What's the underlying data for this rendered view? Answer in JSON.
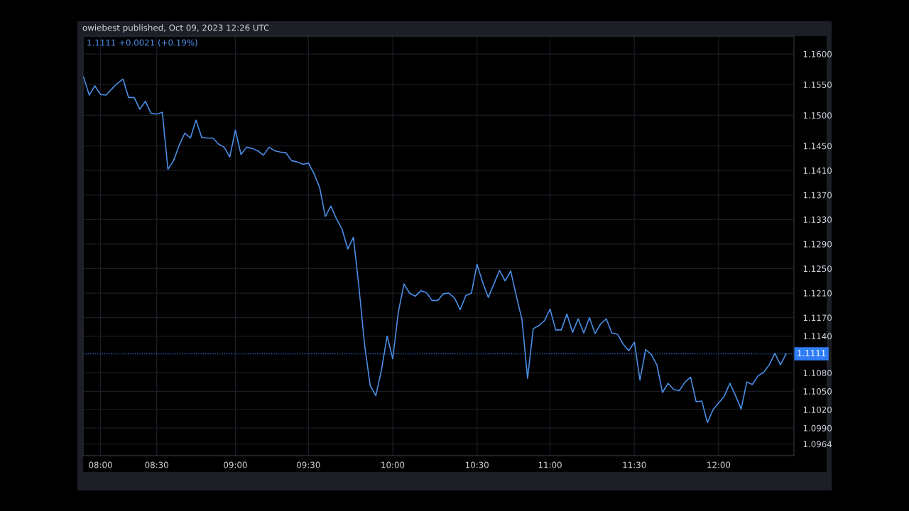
{
  "chart_data": {
    "type": "line",
    "annotations": [
      "owiebest published, Oct 09, 2023 12:26 UTC",
      "1.1111 +0.0021 (+0.19%)"
    ],
    "categories": [
      null,
      null,
      null,
      "08:00",
      null,
      null,
      null,
      null,
      null,
      null,
      null,
      null,
      null,
      "08:30",
      null,
      null,
      null,
      null,
      null,
      null,
      null,
      null,
      null,
      null,
      null,
      null,
      null,
      "09:00",
      null,
      null,
      null,
      null,
      null,
      null,
      null,
      null,
      null,
      null,
      null,
      null,
      "09:30",
      null,
      null,
      null,
      null,
      null,
      null,
      null,
      null,
      null,
      null,
      null,
      null,
      null,
      null,
      "10:00",
      null,
      null,
      null,
      null,
      null,
      null,
      null,
      null,
      null,
      null,
      null,
      null,
      null,
      null,
      "10:30",
      null,
      null,
      null,
      null,
      null,
      null,
      null,
      null,
      null,
      null,
      null,
      null,
      "11:00",
      null,
      null,
      null,
      null,
      null,
      null,
      null,
      null,
      null,
      null,
      null,
      null,
      null,
      null,
      "11:30",
      null,
      null,
      null,
      null,
      null,
      null,
      null,
      null,
      null,
      null,
      null,
      null,
      null,
      null,
      "12:00",
      null,
      null,
      null,
      null,
      null,
      null,
      null,
      null,
      null,
      null,
      null,
      null
    ],
    "series": [
      {
        "color": "#4a8fe7",
        "values": [
          1.1562,
          1.1533,
          1.1548,
          1.1534,
          1.1533,
          1.1543,
          1.1552,
          1.1559,
          1.1529,
          1.1529,
          1.151,
          1.1523,
          1.1503,
          1.1502,
          1.1505,
          1.1412,
          1.1426,
          1.1451,
          1.1471,
          1.1463,
          1.1492,
          1.1464,
          1.1463,
          1.1463,
          1.1453,
          1.1448,
          1.1432,
          1.1476,
          1.1436,
          1.1448,
          1.1446,
          1.1442,
          1.1435,
          1.1448,
          1.1442,
          1.144,
          1.1439,
          1.1426,
          1.1424,
          1.142,
          1.1422,
          1.1405,
          1.1382,
          1.1335,
          1.1352,
          1.1331,
          1.1314,
          1.1282,
          1.1301,
          1.1219,
          1.1125,
          1.1059,
          1.1043,
          1.1085,
          1.114,
          1.1103,
          1.1179,
          1.1225,
          1.121,
          1.1205,
          1.1214,
          1.1211,
          1.1198,
          1.1198,
          1.1209,
          1.121,
          1.1202,
          1.1183,
          1.1206,
          1.121,
          1.1257,
          1.1228,
          1.1203,
          1.1225,
          1.1247,
          1.123,
          1.1246,
          1.1205,
          1.1167,
          1.1071,
          1.1152,
          1.1157,
          1.1165,
          1.1184,
          1.115,
          1.115,
          1.1176,
          1.1146,
          1.1168,
          1.1145,
          1.117,
          1.1144,
          1.116,
          1.1168,
          1.1145,
          1.1143,
          1.1127,
          1.1116,
          1.113,
          1.1068,
          1.1118,
          1.111,
          1.1093,
          1.1048,
          1.1063,
          1.1053,
          1.1051,
          1.1065,
          1.1073,
          1.1033,
          1.1034,
          1.0999,
          1.102,
          1.1031,
          1.1042,
          1.1063,
          1.1043,
          1.1021,
          1.1065,
          1.1061,
          1.1075,
          1.1081,
          1.1093,
          1.1112,
          1.1093,
          1.1111
        ]
      }
    ],
    "ylim": [
      1.0945,
      1.1629
    ],
    "yticks": [
      {
        "value": 1.16,
        "label": "1.1600"
      },
      {
        "value": 1.155,
        "label": "1.1550"
      },
      {
        "value": 1.15,
        "label": "1.1500"
      },
      {
        "value": 1.145,
        "label": "1.1450"
      },
      {
        "value": 1.141,
        "label": "1.1410"
      },
      {
        "value": 1.137,
        "label": "1.1370"
      },
      {
        "value": 1.133,
        "label": "1.1330"
      },
      {
        "value": 1.129,
        "label": "1.1290"
      },
      {
        "value": 1.125,
        "label": "1.1250"
      },
      {
        "value": 1.121,
        "label": "1.1210"
      },
      {
        "value": 1.117,
        "label": "1.1170"
      },
      {
        "value": 1.114,
        "label": "1.1140"
      },
      {
        "value": 1.108,
        "label": "1.1080"
      },
      {
        "value": 1.105,
        "label": "1.1050"
      },
      {
        "value": 1.102,
        "label": "1.1020"
      },
      {
        "value": 1.099,
        "label": "1.0990"
      },
      {
        "value": 1.0964,
        "label": "1.0964"
      }
    ],
    "ref_lines": [
      {
        "axis": "y",
        "value": 1.1111,
        "label": "1.1111",
        "color": "#2f7cf6",
        "line_style": "dotted"
      }
    ],
    "grid": true,
    "line_style": "solid"
  }
}
